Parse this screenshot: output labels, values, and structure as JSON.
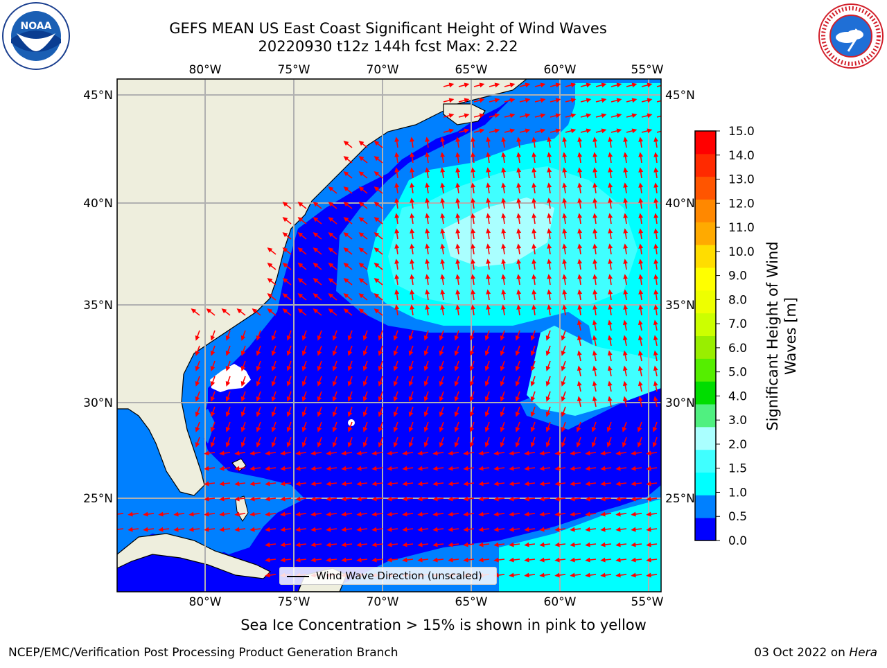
{
  "header": {
    "title_line1": "GEFS MEAN US East Coast Significant Height of Wind Waves",
    "title_line2": "20220930 t12z 144h fcst   Max: 2.22"
  },
  "logos": {
    "left": {
      "icon": "noaa-logo",
      "text": "NOAA"
    },
    "right": {
      "icon": "nws-logo",
      "text": "NATIONAL WEATHER SERVICE"
    }
  },
  "map": {
    "lon_labels": [
      "80°W",
      "75°W",
      "70°W",
      "65°W",
      "60°W",
      "55°W"
    ],
    "lat_labels": [
      "45°N",
      "40°N",
      "35°N",
      "30°N",
      "25°N"
    ],
    "legend_label": "Wind Wave Direction (unscaled)",
    "colors": {
      "land": "#eeeedd",
      "arrow": "#ff0000",
      "grid": "#b0b0b0",
      "coast": "#000000"
    }
  },
  "colorbar": {
    "title_line1": "Significant Height of Wind",
    "title_line2": "Waves [m]",
    "ticks": [
      "15.0",
      "14.0",
      "13.0",
      "12.0",
      "11.0",
      "10.0",
      "9.0",
      "8.0",
      "7.0",
      "6.0",
      "5.0",
      "4.0",
      "3.0",
      "2.0",
      "1.5",
      "1.0",
      "0.5",
      "0.0"
    ],
    "colors": [
      "#0000ff",
      "#0080ff",
      "#00ffff",
      "#40ffff",
      "#aaffff",
      "#50f080",
      "#00dd00",
      "#55ee00",
      "#99ee00",
      "#ccff00",
      "#eeff00",
      "#ffff00",
      "#ffdd00",
      "#ffaa00",
      "#ff8800",
      "#ff5500",
      "#ff2a00",
      "#ff0000"
    ]
  },
  "note": "Sea Ice Concentration > 15% is shown in pink to yellow",
  "footer": {
    "left": "NCEP/EMC/Verification Post Processing Product Generation Branch",
    "right_date": "03 Oct 2022 on ",
    "right_host": "Hera"
  }
}
